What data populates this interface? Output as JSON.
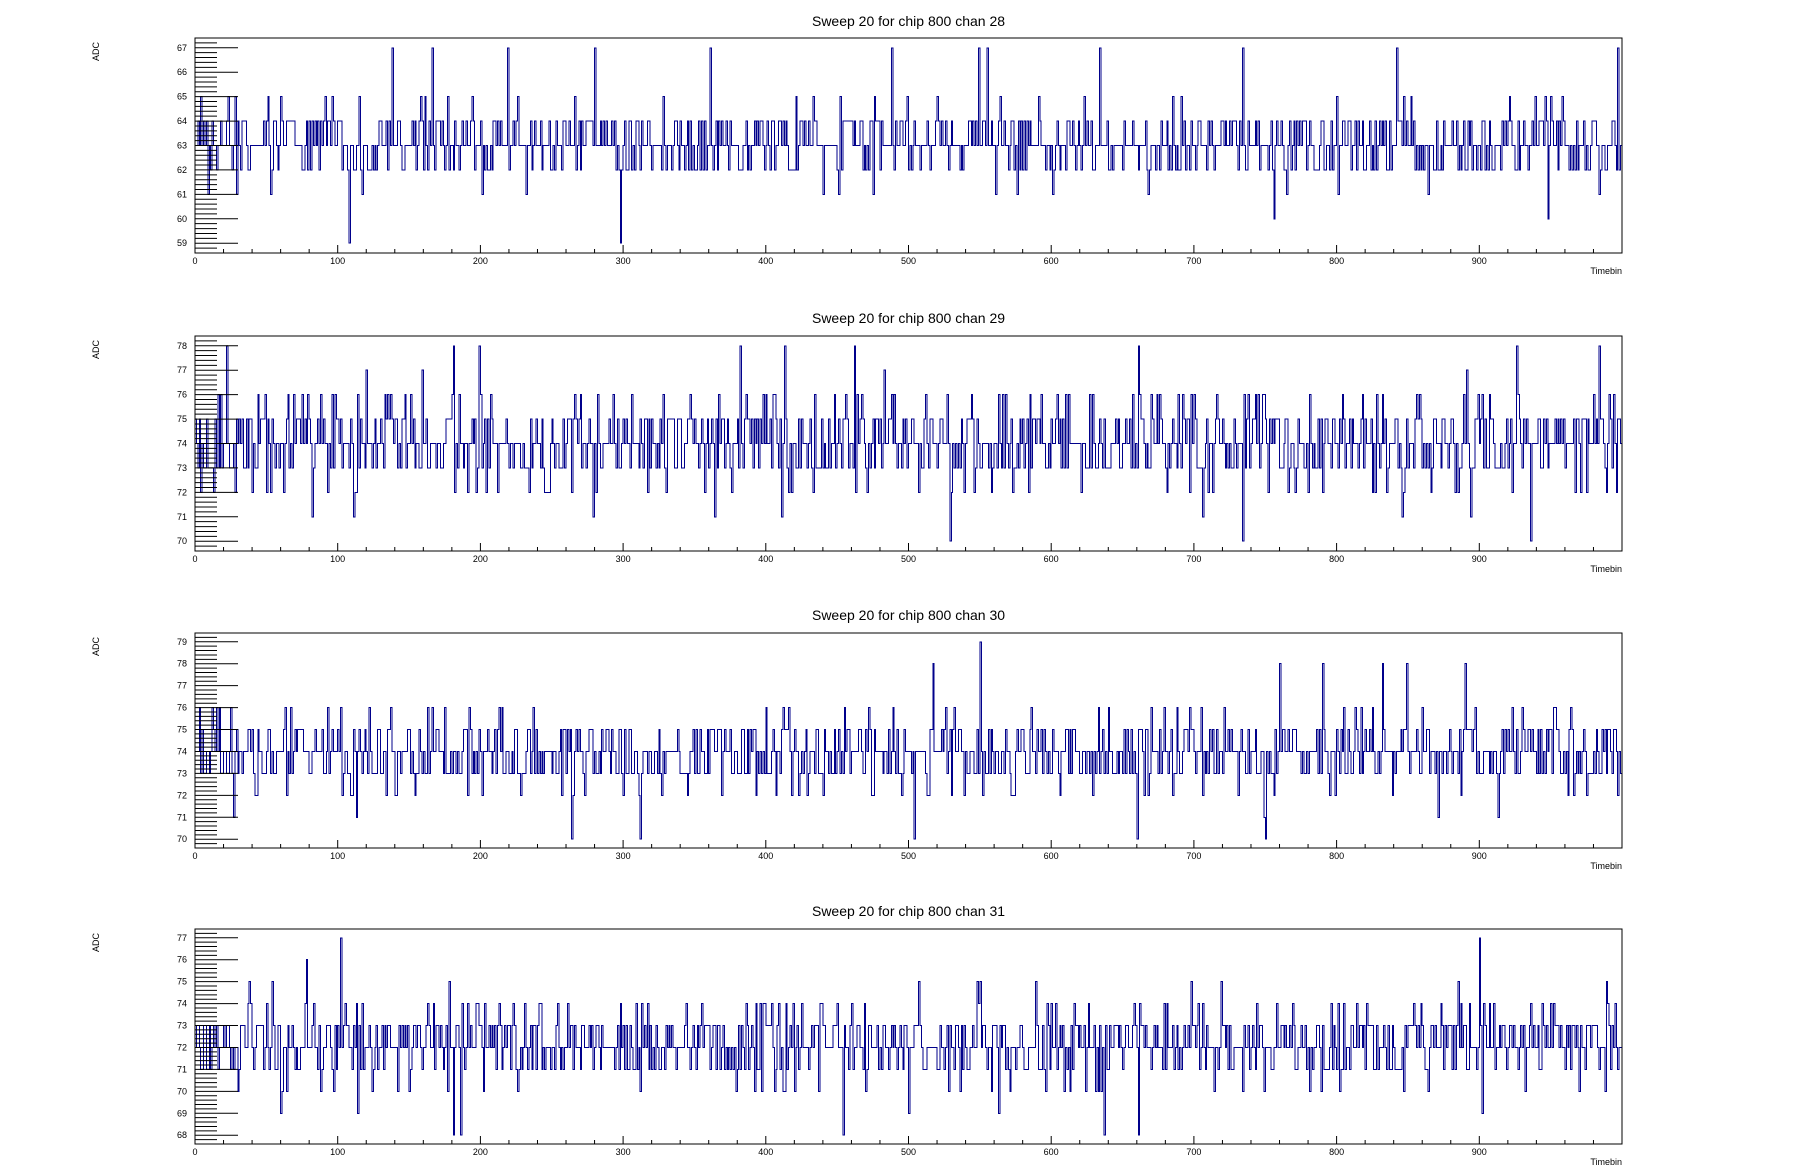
{
  "chart_data": [
    {
      "type": "line",
      "title": "Sweep 20 for chip 800 chan 28",
      "xlabel": "Timebin",
      "ylabel": "ADC",
      "xlim": [
        0,
        1000
      ],
      "ylim": [
        58.6,
        67.4
      ],
      "x_ticks": [
        0,
        100,
        200,
        300,
        400,
        500,
        600,
        700,
        800,
        900
      ],
      "y_ticks": [
        59,
        60,
        61,
        62,
        63,
        64,
        65,
        66,
        67
      ],
      "series_color": "#00008b",
      "mean": 63.1,
      "sigma": 1.1,
      "seed": 28,
      "peaks": [
        {
          "x": 108,
          "y": 59
        },
        {
          "x": 138,
          "y": 67
        },
        {
          "x": 166,
          "y": 67
        },
        {
          "x": 219,
          "y": 67
        },
        {
          "x": 280,
          "y": 67
        },
        {
          "x": 298,
          "y": 59
        },
        {
          "x": 361,
          "y": 67
        },
        {
          "x": 488,
          "y": 67
        },
        {
          "x": 549,
          "y": 67
        },
        {
          "x": 555,
          "y": 67
        },
        {
          "x": 634,
          "y": 67
        },
        {
          "x": 734,
          "y": 67
        },
        {
          "x": 756,
          "y": 60
        },
        {
          "x": 842,
          "y": 67
        },
        {
          "x": 948,
          "y": 60
        },
        {
          "x": 997,
          "y": 67
        }
      ]
    },
    {
      "type": "line",
      "title": "Sweep 20 for chip 800 chan 29",
      "xlabel": "Timebin",
      "ylabel": "ADC",
      "xlim": [
        0,
        1000
      ],
      "ylim": [
        69.6,
        78.4
      ],
      "x_ticks": [
        0,
        100,
        200,
        300,
        400,
        500,
        600,
        700,
        800,
        900
      ],
      "y_ticks": [
        70,
        71,
        72,
        73,
        74,
        75,
        76,
        77,
        78
      ],
      "series_color": "#00008b",
      "mean": 74.0,
      "sigma": 1.4,
      "seed": 29,
      "peaks": [
        {
          "x": 22,
          "y": 78
        },
        {
          "x": 181,
          "y": 78
        },
        {
          "x": 199,
          "y": 78
        },
        {
          "x": 382,
          "y": 78
        },
        {
          "x": 413,
          "y": 78
        },
        {
          "x": 462,
          "y": 78
        },
        {
          "x": 529,
          "y": 70
        },
        {
          "x": 661,
          "y": 78
        },
        {
          "x": 734,
          "y": 70
        },
        {
          "x": 926,
          "y": 78
        },
        {
          "x": 936,
          "y": 70
        },
        {
          "x": 984,
          "y": 78
        }
      ]
    },
    {
      "type": "line",
      "title": "Sweep 20 for chip 800 chan 30",
      "xlabel": "Timebin",
      "ylabel": "ADC",
      "xlim": [
        0,
        1000
      ],
      "ylim": [
        69.6,
        79.4
      ],
      "x_ticks": [
        0,
        100,
        200,
        300,
        400,
        500,
        600,
        700,
        800,
        900
      ],
      "y_ticks": [
        70,
        71,
        72,
        73,
        74,
        75,
        76,
        77,
        78,
        79
      ],
      "series_color": "#00008b",
      "mean": 73.9,
      "sigma": 1.25,
      "seed": 30,
      "peaks": [
        {
          "x": 264,
          "y": 70
        },
        {
          "x": 312,
          "y": 70
        },
        {
          "x": 504,
          "y": 70
        },
        {
          "x": 517,
          "y": 78
        },
        {
          "x": 550,
          "y": 79
        },
        {
          "x": 660,
          "y": 70
        },
        {
          "x": 750,
          "y": 70
        },
        {
          "x": 760,
          "y": 78
        },
        {
          "x": 790,
          "y": 78
        },
        {
          "x": 832,
          "y": 78
        },
        {
          "x": 849,
          "y": 78
        },
        {
          "x": 890,
          "y": 78
        }
      ]
    },
    {
      "type": "line",
      "title": "Sweep 20 for chip 800 chan 31",
      "xlabel": "Timebin",
      "ylabel": "ADC",
      "xlim": [
        0,
        1000
      ],
      "ylim": [
        67.6,
        77.4
      ],
      "x_ticks": [
        0,
        100,
        200,
        300,
        400,
        500,
        600,
        700,
        800,
        900
      ],
      "y_ticks": [
        68,
        69,
        70,
        71,
        72,
        73,
        74,
        75,
        76,
        77
      ],
      "series_color": "#00008b",
      "mean": 72.2,
      "sigma": 1.35,
      "seed": 31,
      "peaks": [
        {
          "x": 78,
          "y": 76
        },
        {
          "x": 102,
          "y": 77
        },
        {
          "x": 181,
          "y": 68
        },
        {
          "x": 186,
          "y": 68
        },
        {
          "x": 454,
          "y": 68
        },
        {
          "x": 637,
          "y": 68
        },
        {
          "x": 661,
          "y": 68
        },
        {
          "x": 900,
          "y": 77
        },
        {
          "x": 902,
          "y": 69
        }
      ]
    }
  ]
}
